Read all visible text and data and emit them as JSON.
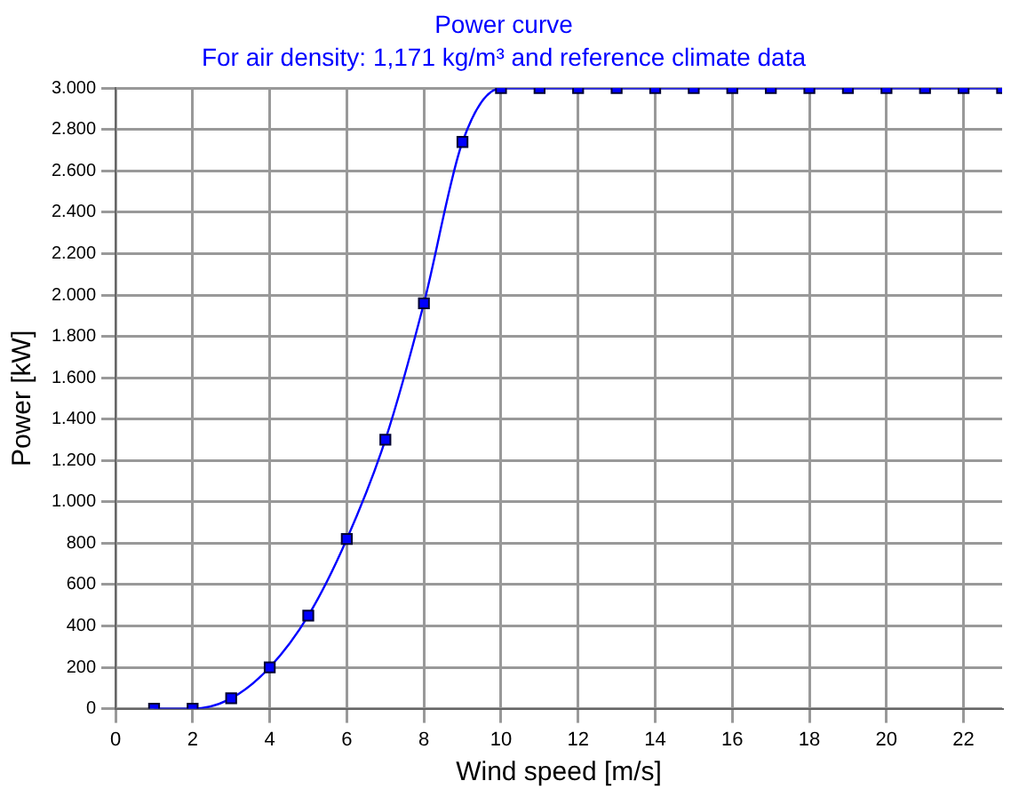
{
  "chart_data": {
    "type": "line",
    "title": "Power curve",
    "subtitle": "For air density: 1,171 kg/m³ and reference climate data",
    "xlabel": "Wind speed [m/s]",
    "ylabel": "Power [kW]",
    "x": [
      1,
      2,
      3,
      4,
      5,
      6,
      7,
      8,
      9,
      10,
      11,
      12,
      13,
      14,
      15,
      16,
      17,
      18,
      19,
      20,
      21,
      22,
      23
    ],
    "series": [
      {
        "color": "#0000ff",
        "values": [
          0,
          0,
          50,
          200,
          450,
          820,
          1300,
          1960,
          2740,
          3000,
          3000,
          3000,
          3000,
          3000,
          3000,
          3000,
          3000,
          3000,
          3000,
          3000,
          3000,
          3000,
          3000
        ]
      }
    ],
    "xlim": [
      0,
      23
    ],
    "xticks": [
      0,
      2,
      4,
      6,
      8,
      10,
      12,
      14,
      16,
      18,
      20,
      22
    ],
    "ylim": [
      0,
      3000
    ],
    "yticks": [
      0,
      200,
      400,
      600,
      800,
      {
        "value": 1000,
        "label": "1.000"
      },
      {
        "value": 1200,
        "label": "1.200"
      },
      {
        "value": 1400,
        "label": "1.400"
      },
      {
        "value": 1600,
        "label": "1.600"
      },
      {
        "value": 1800,
        "label": "1.800"
      },
      {
        "value": 2000,
        "label": "2.000"
      },
      {
        "value": 2200,
        "label": "2.200"
      },
      {
        "value": 2400,
        "label": "2.400"
      },
      {
        "value": 2600,
        "label": "2.600"
      },
      {
        "value": 2800,
        "label": "2.800"
      },
      {
        "value": 3000,
        "label": "3.000"
      }
    ],
    "grid": true,
    "legend": false,
    "marker": "square",
    "line_style": "solid"
  }
}
